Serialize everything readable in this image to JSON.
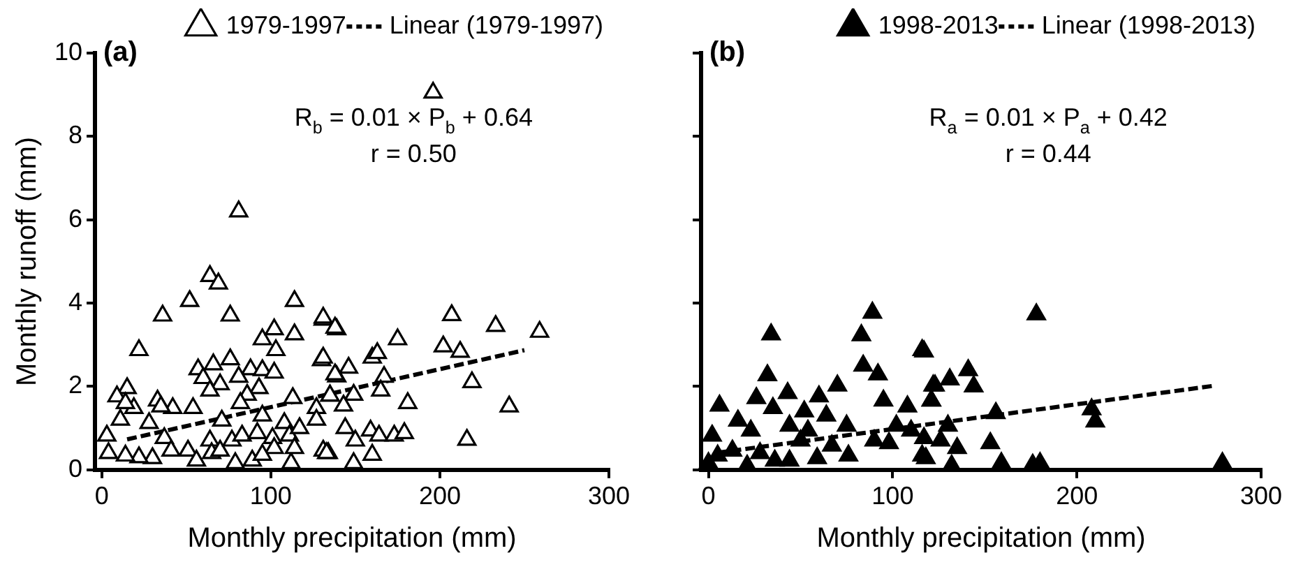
{
  "chart_data": [
    {
      "type": "scatter",
      "title": "(a)",
      "xlabel": "Monthly precipitation (mm)",
      "ylabel": "Monthly runoff (mm)",
      "grid": false,
      "legend": "top",
      "xlim": [
        -4,
        300
      ],
      "xticks": [
        0,
        100,
        200,
        300
      ],
      "ylim": [
        0,
        10
      ],
      "yticks": [
        0,
        2,
        4,
        6,
        8,
        10
      ],
      "annotations": [
        "R$_{b}$ = 0.01 × P$_{b}$ + 0.64",
        "r = 0.50"
      ],
      "series": [
        {
          "name": "1979-1997",
          "type": "scatter",
          "marker": "triangle",
          "color": "#000000",
          "x": [
            81,
            64,
            69,
            52,
            36,
            76,
            114,
            22,
            95,
            102,
            114,
            103,
            131,
            139,
            130,
            139,
            135,
            76,
            66,
            57,
            60,
            70,
            64,
            88,
            81,
            95,
            102,
            93,
            86,
            82,
            113,
            127,
            127,
            54,
            42,
            33,
            35,
            15,
            9,
            19,
            14,
            11,
            28,
            37,
            41,
            30,
            22,
            14,
            4,
            3,
            51,
            56,
            64,
            65,
            71,
            70,
            77,
            79,
            83,
            89,
            92,
            95,
            101,
            102,
            108,
            111,
            112,
            117,
            114,
            131,
            134,
            95,
            131,
            138,
            175,
            207,
            233,
            259,
            202,
            212,
            219,
            241,
            181,
            216,
            160,
            163,
            167,
            165,
            146,
            138,
            131,
            149,
            135,
            143,
            144,
            150,
            160,
            149,
            159,
            164,
            173,
            179,
            133,
            196
          ],
          "values": [
            6.2,
            4.65,
            4.47,
            4.05,
            3.7,
            3.7,
            4.05,
            2.87,
            3.13,
            3.37,
            3.25,
            2.87,
            3.6,
            3.37,
            2.63,
            2.24,
            1.78,
            2.65,
            2.53,
            2.41,
            2.2,
            2.05,
            1.9,
            2.41,
            2.23,
            2.39,
            2.33,
            1.96,
            1.8,
            1.6,
            1.72,
            1.48,
            1.2,
            1.48,
            1.48,
            1.66,
            1.52,
            1.96,
            1.76,
            1.48,
            1.6,
            1.2,
            1.12,
            0.76,
            0.46,
            0.28,
            0.3,
            0.34,
            0.4,
            0.82,
            0.46,
            0.22,
            0.7,
            0.4,
            1.18,
            0.46,
            0.7,
            0.16,
            0.82,
            0.22,
            0.88,
            1.3,
            0.76,
            0.52,
            1.12,
            0.82,
            0.16,
            1.0,
            0.52,
            0.46,
            0.4,
            0.36,
            3.65,
            3.41,
            3.13,
            3.71,
            3.45,
            3.31,
            2.96,
            2.83,
            2.1,
            1.52,
            1.6,
            0.72,
            2.69,
            2.8,
            2.23,
            1.9,
            2.45,
            2.29,
            2.69,
            1.8,
            1.78,
            1.54,
            1.0,
            0.7,
            0.36,
            0.16,
            0.94,
            0.82,
            0.82,
            0.88,
            0.4,
            9.05
          ]
        },
        {
          "name": "Linear (1979-1997)",
          "type": "line",
          "marker": "none",
          "color": "#000000",
          "line_style": "dashed",
          "x": [
            15,
            250
          ],
          "values": [
            0.73,
            2.87
          ]
        }
      ]
    },
    {
      "type": "scatter",
      "title": "(b)",
      "xlabel": "Monthly precipitation (mm)",
      "grid": false,
      "legend": "top",
      "tick_labels": "x",
      "xlim": [
        -4,
        300
      ],
      "xticks": [
        0,
        100,
        200,
        300
      ],
      "ylim": [
        0,
        10
      ],
      "yticks": [
        0,
        2,
        4,
        6,
        8,
        10
      ],
      "annotations": [
        "R$_{a}$ = 0.01 × P$_{a}$ + 0.42",
        "r = 0.44"
      ],
      "series": [
        {
          "name": "1998-2013",
          "type": "scatter",
          "marker": "triangle",
          "color": "#000000",
          "x": [
            89,
            83,
            34,
            84,
            92,
            116,
            32,
            70,
            43,
            26,
            6,
            60,
            95,
            108,
            122,
            121,
            35,
            52,
            75,
            102,
            110,
            90,
            98,
            50,
            44,
            67,
            76,
            116,
            16,
            23,
            2,
            13,
            28,
            44,
            59,
            0,
            21,
            36,
            5,
            54,
            64,
            117,
            178,
            123,
            131,
            141,
            144,
            121,
            156,
            130,
            126,
            135,
            153,
            117,
            208,
            210,
            159,
            176,
            180,
            279,
            118,
            132
          ],
          "values": [
            3.77,
            3.23,
            3.25,
            2.5,
            2.29,
            2.87,
            2.27,
            2.02,
            1.84,
            1.72,
            1.54,
            1.76,
            1.66,
            1.52,
            2.02,
            1.66,
            1.48,
            1.4,
            1.06,
            1.06,
            0.94,
            0.7,
            0.64,
            0.7,
            1.06,
            0.58,
            0.34,
            0.34,
            1.18,
            0.94,
            0.82,
            0.46,
            0.4,
            0.22,
            0.28,
            0.16,
            0.1,
            0.22,
            0.34,
            0.94,
            1.3,
            2.84,
            3.73,
            2.02,
            2.17,
            2.39,
            2.0,
            1.66,
            1.36,
            1.06,
            0.7,
            0.52,
            0.64,
            0.76,
            1.45,
            1.16,
            0.16,
            0.12,
            0.16,
            0.16,
            0.28,
            0.1
          ]
        },
        {
          "name": "Linear (1998-2013)",
          "type": "line",
          "marker": "none",
          "color": "#000000",
          "line_style": "dashed",
          "x": [
            5,
            275
          ],
          "values": [
            0.41,
            2.02
          ]
        }
      ]
    }
  ]
}
